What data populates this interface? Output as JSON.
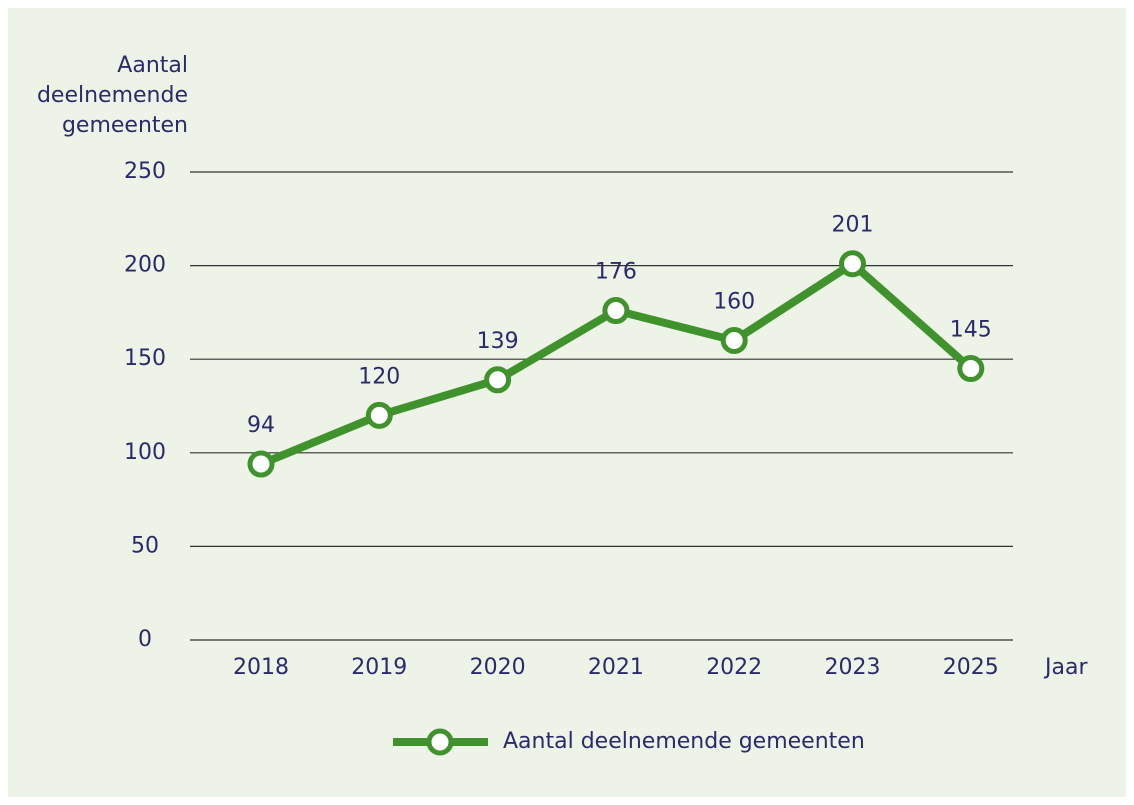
{
  "chart_data": {
    "type": "line",
    "y_axis_label": "Aantal deelnemende gemeenten",
    "x_axis_label": "Jaar",
    "categories": [
      "2018",
      "2019",
      "2020",
      "2021",
      "2022",
      "2023",
      "2025"
    ],
    "series": [
      {
        "name": "Aantal deelnemende gemeenten",
        "color": "#3f922c",
        "values": [
          94,
          120,
          139,
          176,
          160,
          201,
          145
        ]
      }
    ],
    "ylim": [
      0,
      250
    ],
    "yticks": [
      0,
      50,
      100,
      150,
      200,
      250
    ],
    "grid": true,
    "legend": "bottom",
    "data_labels": true
  }
}
